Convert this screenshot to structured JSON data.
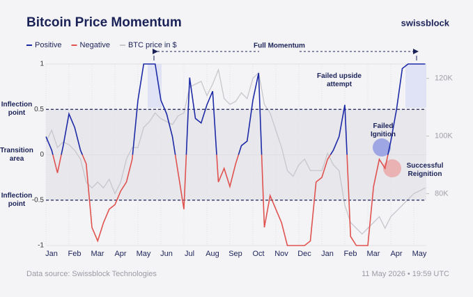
{
  "chart_data": {
    "type": "line",
    "title": "Bitcoin Price Momentum",
    "brand": "swissblock",
    "source": "Data source: Swissblock Technologies",
    "timestamp": "11 May 2026 • 19:59 UTC",
    "categories": [
      "Jan",
      null,
      null,
      null,
      "Feb",
      null,
      null,
      null,
      "Mar",
      null,
      null,
      null,
      "Apr",
      null,
      null,
      null,
      "May",
      null,
      null,
      null,
      "Jun",
      null,
      null,
      null,
      "Jul",
      null,
      null,
      null,
      "Aug",
      null,
      null,
      null,
      "Sep",
      null,
      null,
      null,
      "Oct",
      null,
      null,
      null,
      "Nov",
      null,
      null,
      null,
      "Dec",
      null,
      null,
      null,
      "Jan",
      null,
      null,
      null,
      "Feb",
      null,
      null,
      null,
      "Mar",
      null,
      null,
      null,
      "Apr",
      null,
      null,
      null,
      "May",
      null,
      null
    ],
    "momentum": {
      "values": [
        0.2,
        0.05,
        -0.2,
        0.1,
        0.45,
        0.3,
        0.05,
        -0.1,
        -0.8,
        -0.95,
        -0.75,
        -0.6,
        -0.55,
        -0.4,
        -0.3,
        -0.05,
        0.6,
        1,
        1,
        1,
        0.6,
        0.45,
        0.2,
        -0.2,
        -0.6,
        0.85,
        0.4,
        0.35,
        0.55,
        0.7,
        -0.3,
        -0.15,
        -0.35,
        -0.1,
        0.1,
        0.15,
        0.6,
        0.9,
        -0.8,
        -0.45,
        -0.6,
        -0.75,
        -1,
        -1,
        -1,
        -1,
        -0.95,
        -0.3,
        -0.25,
        -0.05,
        0.05,
        0.2,
        0.55,
        -0.9,
        -1,
        -1,
        -1,
        -0.35,
        -0.05,
        -0.15,
        0.15,
        0.5,
        0.95,
        1,
        1,
        1,
        1
      ],
      "legend": [
        {
          "name": "Positive",
          "color": "#1d2aa6"
        },
        {
          "name": "Negative",
          "color": "#e0524f"
        }
      ]
    },
    "series": [
      {
        "name": "BTC price in $",
        "color": "#c6c6cc",
        "axis": "y2",
        "values": [
          98000,
          102000,
          96000,
          98000,
          97000,
          95000,
          92000,
          84000,
          82000,
          84000,
          82000,
          85000,
          80000,
          84000,
          92000,
          96000,
          96000,
          103000,
          105000,
          108000,
          106000,
          105000,
          104000,
          107000,
          108000,
          117000,
          118000,
          119000,
          114000,
          118000,
          123000,
          113000,
          111000,
          112000,
          115000,
          113000,
          120000,
          122000,
          111000,
          108000,
          102000,
          96000,
          88000,
          86000,
          90000,
          92000,
          88000,
          88000,
          88000,
          94000,
          90000,
          88000,
          76000,
          70000,
          68000,
          66000,
          68000,
          70000,
          72000,
          68000,
          72000,
          74000,
          76000,
          78000,
          80000,
          81000,
          82000
        ]
      }
    ],
    "ylim": [
      -1,
      1
    ],
    "yticks": [
      1,
      0.5,
      0,
      -0.5,
      -1
    ],
    "y2lim": [
      62000,
      125000
    ],
    "y2ticks": [
      {
        "value": 120000,
        "label": "120K"
      },
      {
        "value": 100000,
        "label": "100K"
      },
      {
        "value": 80000,
        "label": "80K"
      }
    ],
    "band": [
      -0.5,
      0.5
    ],
    "reference_lines": [
      0.5,
      -0.5
    ],
    "side_labels": [
      {
        "text": "Inflection point",
        "value": 0.5
      },
      {
        "text": "Transition area",
        "value": 0
      },
      {
        "text": "Inflection point",
        "value": -0.5
      }
    ],
    "annotations": {
      "full_momentum": "Full Momentum",
      "failed_upside": "Failed upside attempt",
      "failed_ignition": "Failed Ignition",
      "successful_reignition": "Successful Reignition"
    }
  }
}
